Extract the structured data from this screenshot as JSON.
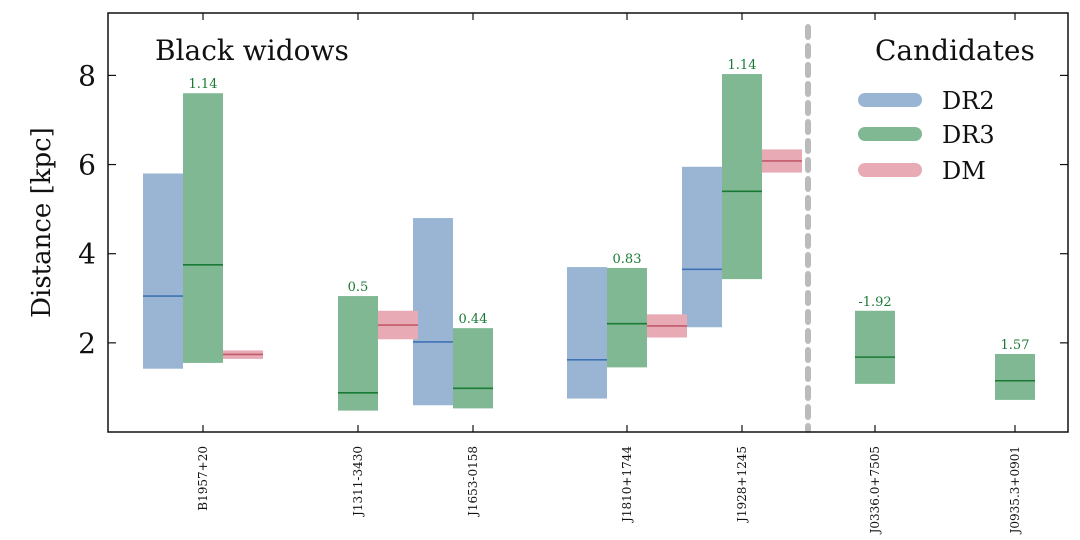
{
  "chart_data": {
    "type": "floating-range-bar",
    "ylabel": "Distance [kpc]",
    "ylim": [
      0,
      9.4
    ],
    "yticks": [
      2,
      4,
      6,
      8
    ],
    "group_titles": [
      "Black widows",
      "Candidates"
    ],
    "colors": {
      "DR2": "#9ab5d4",
      "DR2_line": "#3f73b5",
      "DR3": "#7fb893",
      "DR3_line": "#1a7a35",
      "DM": "#e8aab5",
      "DM_line": "#c25a6b",
      "separator": "#bbbbbb",
      "label": "#1a7a35"
    },
    "legend": [
      {
        "key": "DR2",
        "label": "DR2"
      },
      {
        "key": "DR3",
        "label": "DR3"
      },
      {
        "key": "DM",
        "label": "DM"
      }
    ],
    "categories": [
      "B1957+20",
      "J1311-3430",
      "J1653-0158",
      "J1810+1744",
      "J1928+1245",
      "J0336.0+7505",
      "J0935.3+0901"
    ],
    "series": [
      {
        "name": "DR2",
        "values": [
          {
            "low": 1.42,
            "mid": 3.05,
            "high": 5.8
          },
          null,
          {
            "low": 0.6,
            "mid": 2.02,
            "high": 4.8
          },
          {
            "low": 0.75,
            "mid": 1.62,
            "high": 3.7
          },
          {
            "low": 2.35,
            "mid": 3.65,
            "high": 5.95
          },
          null,
          null
        ]
      },
      {
        "name": "DR3",
        "values": [
          {
            "low": 1.55,
            "mid": 3.75,
            "high": 7.6
          },
          {
            "low": 0.48,
            "mid": 0.88,
            "high": 3.05
          },
          {
            "low": 0.53,
            "mid": 0.98,
            "high": 2.33
          },
          {
            "low": 1.45,
            "mid": 2.43,
            "high": 3.68
          },
          {
            "low": 3.43,
            "mid": 5.4,
            "high": 8.03
          },
          {
            "low": 1.08,
            "mid": 1.68,
            "high": 2.72
          },
          {
            "low": 0.72,
            "mid": 1.15,
            "high": 1.75
          }
        ]
      },
      {
        "name": "DM",
        "values": [
          {
            "low": 1.64,
            "mid": 1.74,
            "high": 1.83
          },
          {
            "low": 2.08,
            "mid": 2.4,
            "high": 2.72
          },
          null,
          {
            "low": 2.12,
            "mid": 2.38,
            "high": 2.64
          },
          {
            "low": 5.82,
            "mid": 6.08,
            "high": 6.34
          },
          null,
          null
        ]
      }
    ],
    "dr3_labels": [
      "1.14",
      "0.5",
      "0.44",
      "0.83",
      "1.14",
      "-1.92",
      "1.57"
    ]
  }
}
